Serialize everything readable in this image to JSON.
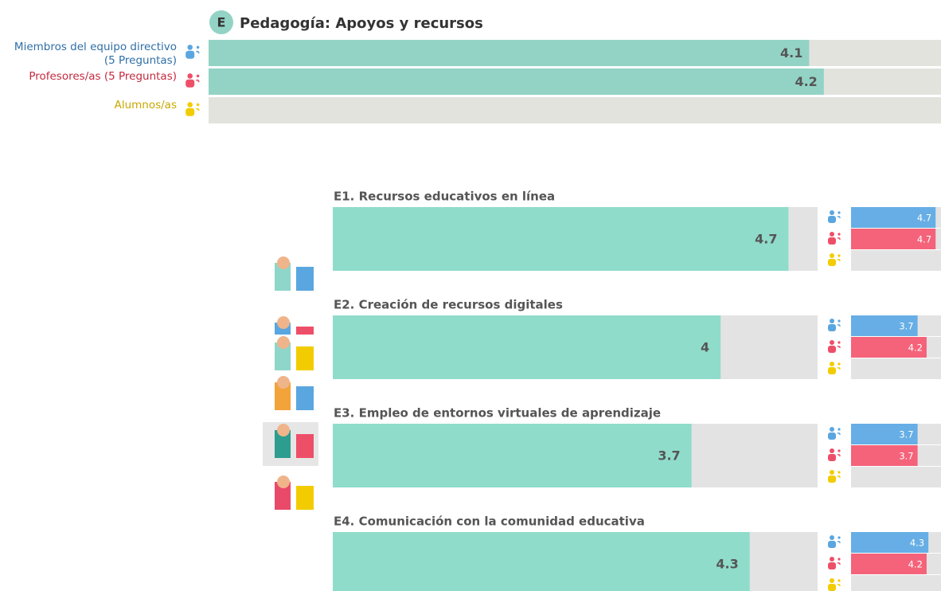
{
  "chart_data": [
    {
      "type": "bar",
      "badge": "E",
      "title": "Pedagogía: Apoyos y recursos",
      "categories": [
        "Miembros del equipo directivo (5 Preguntas)",
        "Profesores/as (5 Preguntas)",
        "Alumnos/as"
      ],
      "values": [
        4.1,
        4.2,
        null
      ],
      "xlim": [
        0,
        5
      ],
      "color": "#93d3c5",
      "label_colors": [
        "#2f6fa6",
        "#c42a3e",
        "#c9a600"
      ]
    },
    {
      "type": "bar",
      "title": "E1. Recursos educativos en línea",
      "overall": 4.7,
      "values": [
        4.7,
        4.7,
        null
      ],
      "xlim": [
        0,
        5
      ],
      "color": "#8fdccb",
      "colors": [
        "#66aee5",
        "#f4637a",
        "#e3e3e3"
      ]
    },
    {
      "type": "bar",
      "title": "E2. Creación de recursos digitales",
      "overall": 4,
      "values": [
        3.7,
        4.2,
        null
      ],
      "xlim": [
        0,
        5
      ],
      "color": "#8fdccb",
      "colors": [
        "#66aee5",
        "#f4637a",
        "#e3e3e3"
      ]
    },
    {
      "type": "bar",
      "title": "E3. Empleo de entornos virtuales de aprendizaje",
      "overall": 3.7,
      "values": [
        3.7,
        3.7,
        null
      ],
      "xlim": [
        0,
        5
      ],
      "color": "#8fdccb",
      "colors": [
        "#66aee5",
        "#f4637a",
        "#e3e3e3"
      ]
    },
    {
      "type": "bar",
      "title": "E4. Comunicación con la comunidad educativa",
      "overall": 4.3,
      "values": [
        4.3,
        4.2,
        null
      ],
      "xlim": [
        0,
        5
      ],
      "color": "#8fdccb",
      "colors": [
        "#66aee5",
        "#f4637a",
        "#e3e3e3"
      ]
    }
  ]
}
